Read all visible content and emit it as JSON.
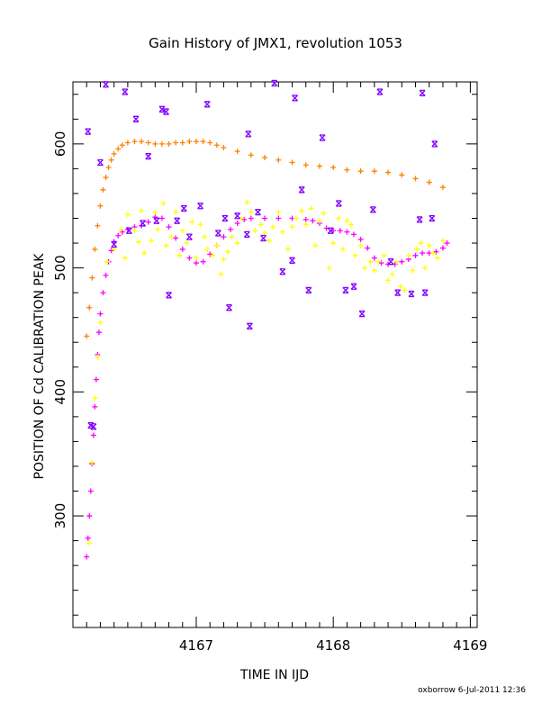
{
  "chart_data": {
    "type": "scatter",
    "title": "Gain History of JMX1, revolution 1053",
    "xlabel": "TIME IN IJD",
    "ylabel": "POSITION OF Cd CALIBRATION PEAK",
    "xlim": [
      4166.1,
      4169.05
    ],
    "ylim": [
      210,
      650
    ],
    "xticks": [
      4167,
      4168,
      4169
    ],
    "yticks": [
      300,
      400,
      500,
      600
    ],
    "grid": false,
    "legend": "none",
    "footer": "oxborrow   6-Jul-2011 12:36",
    "series": [
      {
        "color": "#ff8000",
        "marker": "plus",
        "points": [
          [
            4166.2,
            445
          ],
          [
            4166.22,
            468
          ],
          [
            4166.24,
            492
          ],
          [
            4166.26,
            515
          ],
          [
            4166.28,
            534
          ],
          [
            4166.3,
            550
          ],
          [
            4166.32,
            563
          ],
          [
            4166.34,
            573
          ],
          [
            4166.36,
            581
          ],
          [
            4166.38,
            587
          ],
          [
            4166.4,
            592
          ],
          [
            4166.43,
            596
          ],
          [
            4166.46,
            599
          ],
          [
            4166.5,
            601
          ],
          [
            4166.55,
            602
          ],
          [
            4166.6,
            602
          ],
          [
            4166.65,
            601
          ],
          [
            4166.7,
            600
          ],
          [
            4166.75,
            600
          ],
          [
            4166.8,
            600
          ],
          [
            4166.85,
            601
          ],
          [
            4166.9,
            601
          ],
          [
            4166.95,
            602
          ],
          [
            4167.0,
            602
          ],
          [
            4167.05,
            602
          ],
          [
            4167.1,
            601
          ],
          [
            4167.15,
            599
          ],
          [
            4167.2,
            597
          ],
          [
            4167.3,
            594
          ],
          [
            4167.4,
            591
          ],
          [
            4167.5,
            589
          ],
          [
            4167.6,
            587
          ],
          [
            4167.7,
            585
          ],
          [
            4167.8,
            583
          ],
          [
            4167.9,
            582
          ],
          [
            4168.0,
            581
          ],
          [
            4168.1,
            579
          ],
          [
            4168.2,
            578
          ],
          [
            4168.3,
            578
          ],
          [
            4168.4,
            577
          ],
          [
            4168.5,
            575
          ],
          [
            4168.6,
            572
          ],
          [
            4168.7,
            569
          ],
          [
            4168.8,
            565
          ]
        ]
      },
      {
        "color": "#ff00ff",
        "marker": "plus",
        "points": [
          [
            4166.2,
            267
          ],
          [
            4166.21,
            282
          ],
          [
            4166.22,
            300
          ],
          [
            4166.23,
            320
          ],
          [
            4166.24,
            342
          ],
          [
            4166.25,
            365
          ],
          [
            4166.26,
            388
          ],
          [
            4166.27,
            410
          ],
          [
            4166.28,
            430
          ],
          [
            4166.29,
            448
          ],
          [
            4166.3,
            463
          ],
          [
            4166.32,
            480
          ],
          [
            4166.34,
            494
          ],
          [
            4166.36,
            505
          ],
          [
            4166.38,
            514
          ],
          [
            4166.4,
            521
          ],
          [
            4166.43,
            526
          ],
          [
            4166.46,
            529
          ],
          [
            4166.5,
            531
          ],
          [
            4166.55,
            533
          ],
          [
            4166.6,
            534
          ],
          [
            4166.65,
            537
          ],
          [
            4166.7,
            541
          ],
          [
            4166.75,
            540
          ],
          [
            4166.8,
            533
          ],
          [
            4166.85,
            524
          ],
          [
            4166.9,
            515
          ],
          [
            4166.95,
            508
          ],
          [
            4167.0,
            504
          ],
          [
            4167.05,
            505
          ],
          [
            4167.1,
            511
          ],
          [
            4167.15,
            518
          ],
          [
            4167.2,
            525
          ],
          [
            4167.25,
            531
          ],
          [
            4167.3,
            536
          ],
          [
            4167.35,
            539
          ],
          [
            4167.4,
            540
          ],
          [
            4167.5,
            540
          ],
          [
            4167.6,
            540
          ],
          [
            4167.7,
            540
          ],
          [
            4167.8,
            539
          ],
          [
            4167.85,
            538
          ],
          [
            4167.9,
            536
          ],
          [
            4167.95,
            532
          ],
          [
            4168.0,
            530
          ],
          [
            4168.05,
            530
          ],
          [
            4168.1,
            529
          ],
          [
            4168.15,
            527
          ],
          [
            4168.2,
            523
          ],
          [
            4168.25,
            516
          ],
          [
            4168.3,
            508
          ],
          [
            4168.35,
            504
          ],
          [
            4168.4,
            503
          ],
          [
            4168.45,
            503
          ],
          [
            4168.5,
            505
          ],
          [
            4168.55,
            507
          ],
          [
            4168.6,
            510
          ],
          [
            4168.65,
            512
          ],
          [
            4168.7,
            512
          ],
          [
            4168.75,
            513
          ],
          [
            4168.8,
            516
          ],
          [
            4168.83,
            520
          ]
        ]
      },
      {
        "color": "#ffff00",
        "marker": "plus",
        "points": [
          [
            4166.22,
            278
          ],
          [
            4166.24,
            343
          ],
          [
            4166.26,
            395
          ],
          [
            4166.28,
            428
          ],
          [
            4166.3,
            456
          ],
          [
            4166.35,
            505
          ],
          [
            4166.4,
            515
          ],
          [
            4166.45,
            531
          ],
          [
            4166.48,
            508
          ],
          [
            4166.5,
            543
          ],
          [
            4166.55,
            530
          ],
          [
            4166.58,
            521
          ],
          [
            4166.6,
            546
          ],
          [
            4166.62,
            512
          ],
          [
            4166.67,
            522
          ],
          [
            4166.7,
            545
          ],
          [
            4166.72,
            531
          ],
          [
            4166.76,
            552
          ],
          [
            4166.78,
            518
          ],
          [
            4166.82,
            525
          ],
          [
            4166.85,
            545
          ],
          [
            4166.88,
            510
          ],
          [
            4166.9,
            530
          ],
          [
            4166.93,
            520
          ],
          [
            4166.97,
            537
          ],
          [
            4167.0,
            508
          ],
          [
            4167.03,
            535
          ],
          [
            4167.06,
            525
          ],
          [
            4167.08,
            515
          ],
          [
            4167.12,
            510
          ],
          [
            4167.15,
            518
          ],
          [
            4167.18,
            495
          ],
          [
            4167.2,
            507
          ],
          [
            4167.23,
            513
          ],
          [
            4167.26,
            525
          ],
          [
            4167.3,
            520
          ],
          [
            4167.33,
            540
          ],
          [
            4167.37,
            553
          ],
          [
            4167.4,
            545
          ],
          [
            4167.43,
            530
          ],
          [
            4167.47,
            535
          ],
          [
            4167.5,
            528
          ],
          [
            4167.53,
            522
          ],
          [
            4167.56,
            533
          ],
          [
            4167.6,
            545
          ],
          [
            4167.63,
            529
          ],
          [
            4167.67,
            515
          ],
          [
            4167.7,
            533
          ],
          [
            4167.73,
            540
          ],
          [
            4167.77,
            546
          ],
          [
            4167.8,
            535
          ],
          [
            4167.84,
            548
          ],
          [
            4167.87,
            518
          ],
          [
            4167.9,
            538
          ],
          [
            4167.93,
            544
          ],
          [
            4167.97,
            500
          ],
          [
            4168.0,
            520
          ],
          [
            4168.04,
            540
          ],
          [
            4168.07,
            515
          ],
          [
            4168.1,
            538
          ],
          [
            4168.13,
            535
          ],
          [
            4168.16,
            510
          ],
          [
            4168.2,
            518
          ],
          [
            4168.23,
            500
          ],
          [
            4168.27,
            505
          ],
          [
            4168.3,
            498
          ],
          [
            4168.33,
            505
          ],
          [
            4168.37,
            510
          ],
          [
            4168.4,
            490
          ],
          [
            4168.43,
            495
          ],
          [
            4168.46,
            505
          ],
          [
            4168.49,
            485
          ],
          [
            4168.52,
            482
          ],
          [
            4168.55,
            510
          ],
          [
            4168.58,
            498
          ],
          [
            4168.61,
            515
          ],
          [
            4168.64,
            520
          ],
          [
            4168.67,
            500
          ],
          [
            4168.7,
            518
          ],
          [
            4168.73,
            512
          ],
          [
            4168.76,
            508
          ],
          [
            4168.8,
            522
          ]
        ]
      },
      {
        "color": "#8000ff",
        "marker": "x",
        "points": [
          [
            4166.21,
            610
          ],
          [
            4166.23,
            373
          ],
          [
            4166.25,
            372
          ],
          [
            4166.3,
            585
          ],
          [
            4166.34,
            648
          ],
          [
            4166.4,
            519
          ],
          [
            4166.48,
            642
          ],
          [
            4166.51,
            530
          ],
          [
            4166.56,
            620
          ],
          [
            4166.61,
            536
          ],
          [
            4166.65,
            590
          ],
          [
            4166.71,
            538
          ],
          [
            4166.75,
            628
          ],
          [
            4166.78,
            626
          ],
          [
            4166.8,
            478
          ],
          [
            4166.86,
            538
          ],
          [
            4166.91,
            548
          ],
          [
            4166.95,
            525
          ],
          [
            4167.03,
            550
          ],
          [
            4167.08,
            632
          ],
          [
            4167.16,
            528
          ],
          [
            4167.21,
            540
          ],
          [
            4167.24,
            468
          ],
          [
            4167.3,
            542
          ],
          [
            4167.37,
            527
          ],
          [
            4167.38,
            608
          ],
          [
            4167.39,
            453
          ],
          [
            4167.45,
            545
          ],
          [
            4167.49,
            524
          ],
          [
            4167.57,
            649
          ],
          [
            4167.63,
            497
          ],
          [
            4167.7,
            506
          ],
          [
            4167.72,
            637
          ],
          [
            4167.77,
            563
          ],
          [
            4167.82,
            482
          ],
          [
            4167.92,
            605
          ],
          [
            4167.98,
            530
          ],
          [
            4168.04,
            552
          ],
          [
            4168.09,
            482
          ],
          [
            4168.15,
            485
          ],
          [
            4168.21,
            463
          ],
          [
            4168.29,
            547
          ],
          [
            4168.34,
            642
          ],
          [
            4168.42,
            505
          ],
          [
            4168.47,
            480
          ],
          [
            4168.57,
            479
          ],
          [
            4168.63,
            539
          ],
          [
            4168.65,
            641
          ],
          [
            4168.67,
            480
          ],
          [
            4168.72,
            540
          ],
          [
            4168.74,
            600
          ]
        ]
      }
    ]
  }
}
